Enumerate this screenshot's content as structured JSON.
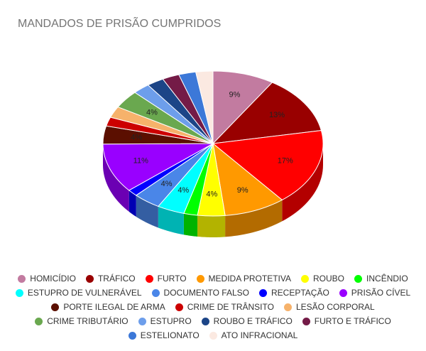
{
  "chart_data": {
    "type": "pie3d",
    "title": "MANDADOS DE PRISÃO CUMPRIDOS",
    "categories": [
      "HOMICÍDIO",
      "TRÁFICO",
      "FURTO",
      "MEDIDA PROTETIVA",
      "ROUBO",
      "INCÊNDIO",
      "ESTUPRO DE VULNERÁVEL",
      "DOCUMENTO FALSO",
      "RECEPTAÇÃO",
      "PRISÃO CÍVEL",
      "PORTE ILEGAL DE ARMA",
      "CRIME DE TRÂNSITO",
      "LESÃO CORPORAL",
      "CRIME TRIBUTÁRIO",
      "ESTUPRO",
      "ROUBO E TRÁFICO",
      "FURTO E TRÁFICO",
      "ESTELIONATO",
      "ATO INFRACIONAL"
    ],
    "values": [
      9,
      13,
      17,
      9,
      4,
      2,
      4,
      4,
      1.5,
      11,
      4,
      2,
      2.5,
      4,
      2.5,
      2.5,
      2.5,
      2.5,
      2.5
    ],
    "value_labels": [
      "9%",
      "13%",
      "17%",
      "9%",
      "4%",
      null,
      "4%",
      "4%",
      null,
      "11%",
      "4%",
      null,
      null,
      "4%",
      null,
      null,
      null,
      null,
      null
    ],
    "colors": [
      "#c27ba0",
      "#990000",
      "#ff0000",
      "#ff9900",
      "#ffff00",
      "#00ff00",
      "#00ffff",
      "#4a86e8",
      "#0000ff",
      "#9900ff",
      "#5b0f00",
      "#cc0000",
      "#f6b26b",
      "#6aa84f",
      "#6d9eeb",
      "#1c4587",
      "#741b47",
      "#3c78d8",
      "#fbe9e1"
    ]
  }
}
